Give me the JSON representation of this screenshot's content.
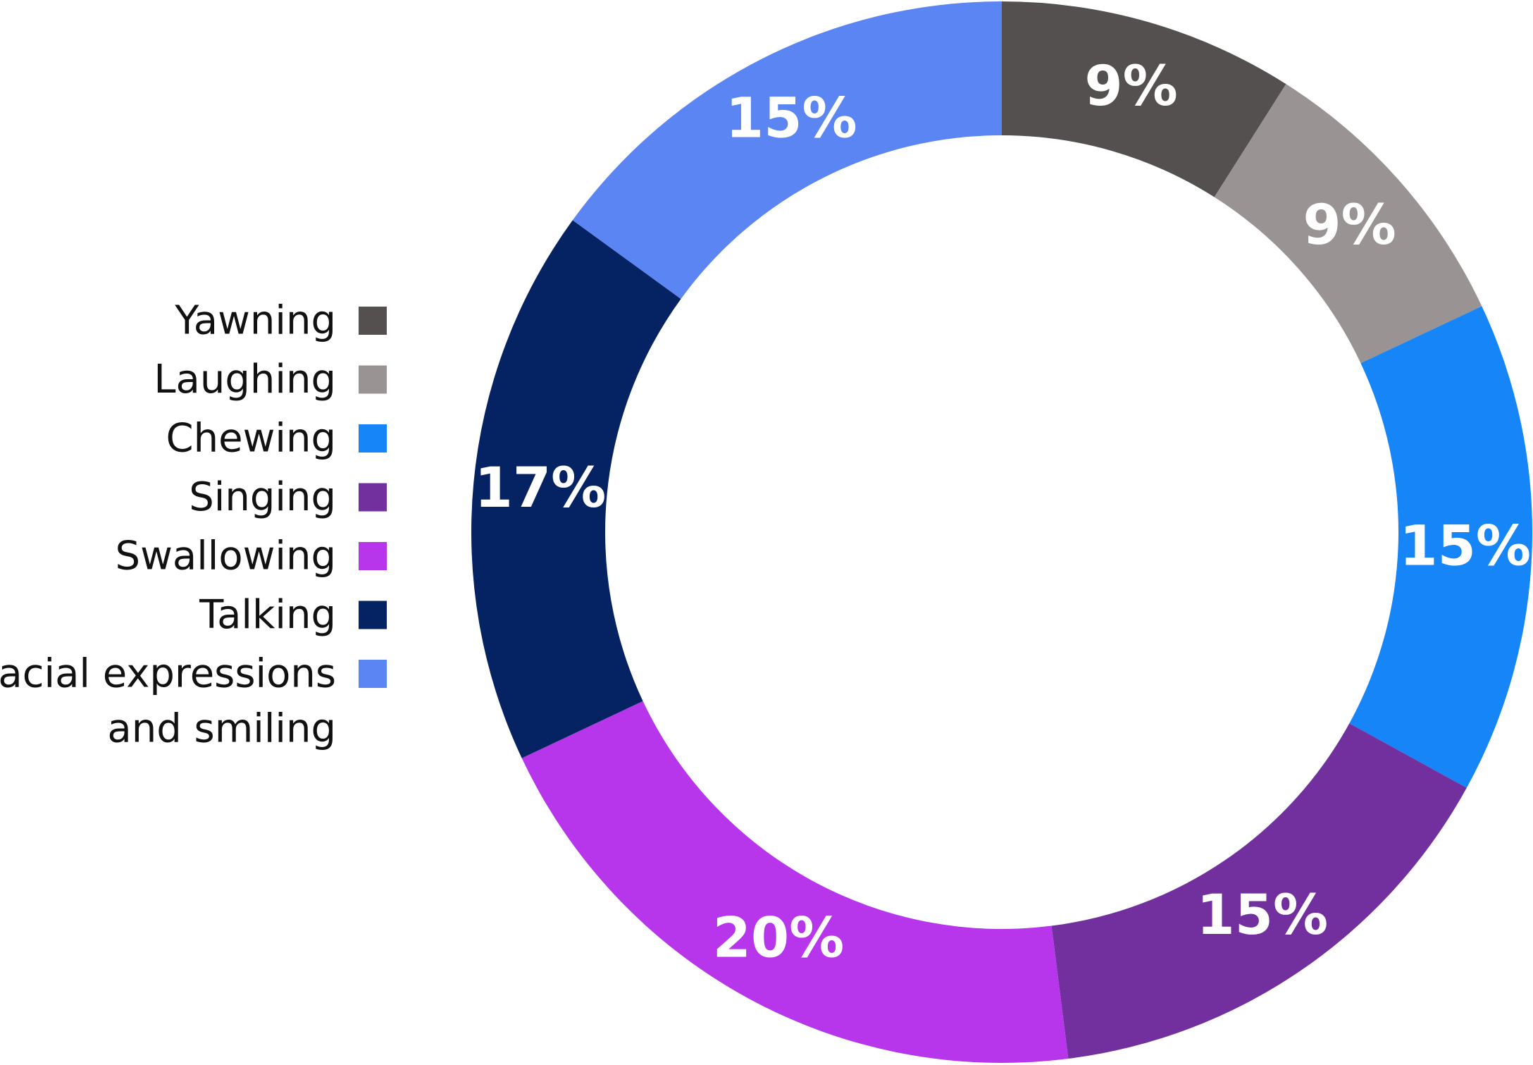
{
  "chart_data": {
    "type": "pie",
    "style": "donut",
    "categories": [
      "Yawning",
      "Laughing",
      "Chewing",
      "Singing",
      "Swallowing",
      "Talking",
      "Facial expressions and smiling"
    ],
    "values": [
      9,
      9,
      15,
      15,
      20,
      17,
      15
    ],
    "value_labels": [
      "9%",
      "9%",
      "15%",
      "15%",
      "20%",
      "17%",
      "15%"
    ],
    "colors": [
      "#545050",
      "#999493",
      "#1585f8",
      "#72309f",
      "#b736ec",
      "#052262",
      "#5b85f3"
    ],
    "legend": {
      "placement": "left",
      "entries": [
        {
          "lines": [
            "Yawning"
          ],
          "color": "#545050"
        },
        {
          "lines": [
            "Laughing"
          ],
          "color": "#999493"
        },
        {
          "lines": [
            "Chewing"
          ],
          "color": "#1585f8"
        },
        {
          "lines": [
            "Singing"
          ],
          "color": "#72309f"
        },
        {
          "lines": [
            "Swallowing"
          ],
          "color": "#b736ec"
        },
        {
          "lines": [
            "Talking"
          ],
          "color": "#052262"
        },
        {
          "lines": [
            "Facial expressions",
            "and smiling"
          ],
          "color": "#5b85f3"
        }
      ]
    },
    "start_direction": "top",
    "direction": "clockwise"
  }
}
